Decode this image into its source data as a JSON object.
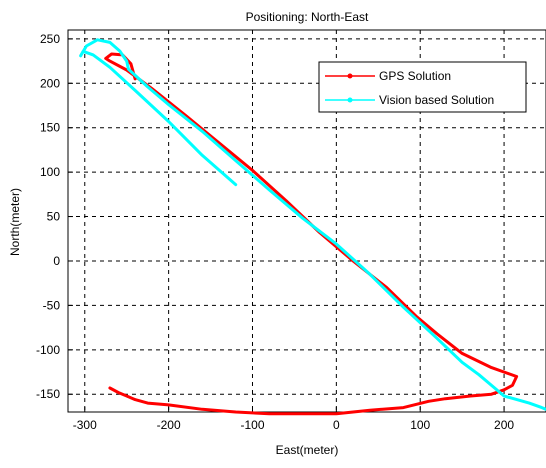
{
  "chart_data": {
    "type": "line",
    "title": "Positioning: North-East",
    "xlabel": "East(meter)",
    "ylabel": "North(meter)",
    "xlim": [
      -320,
      250
    ],
    "ylim": [
      -170,
      260
    ],
    "xticks": [
      -300,
      -200,
      -100,
      0,
      100,
      200
    ],
    "yticks": [
      -150,
      -100,
      -50,
      0,
      50,
      100,
      150,
      200,
      250
    ],
    "xtick_labels": [
      "-300",
      "-200",
      "-100",
      "0",
      "100",
      "200"
    ],
    "ytick_labels": [
      "-150",
      "-100",
      "-50",
      "0",
      "50",
      "100",
      "150",
      "200",
      "250"
    ],
    "grid": true,
    "grid_style": "dashed",
    "legend_position": "top-right",
    "series": [
      {
        "name": "GPS Solution",
        "color": "#ff0000",
        "line_width": 3,
        "x": [
          -270,
          -260,
          -250,
          -240,
          -225,
          -200,
          -160,
          -120,
          -80,
          -40,
          0,
          40,
          80,
          110,
          130,
          160,
          185,
          200,
          210,
          215,
          185,
          150,
          120,
          95,
          60,
          20,
          -20,
          -60,
          -100,
          -140,
          -180,
          -220,
          -250,
          -270,
          -275,
          -268,
          -255,
          -245,
          -240
        ],
        "y": [
          -143,
          -148,
          -152,
          -156,
          -160,
          -162,
          -167,
          -170,
          -172,
          -172,
          -172,
          -168,
          -165,
          -158,
          -155,
          -152,
          -150,
          -145,
          -140,
          -130,
          -120,
          -104,
          -82,
          -62,
          -30,
          0,
          32,
          68,
          102,
          133,
          164,
          194,
          215,
          225,
          228,
          233,
          232,
          222,
          205
        ]
      },
      {
        "name": "Vision based Solution",
        "color": "#00ffff",
        "line_width": 3,
        "x": [
          -120,
          -160,
          -200,
          -240,
          -270,
          -290,
          -302,
          -305,
          -298,
          -285,
          -270,
          -258,
          -250,
          -248,
          -225,
          -200,
          -160,
          -120,
          -80,
          -40,
          0,
          40,
          80,
          120,
          150,
          170,
          200,
          230,
          245,
          250
        ],
        "y": [
          86,
          119,
          157,
          192,
          218,
          232,
          236,
          231,
          242,
          249,
          246,
          236,
          225,
          216,
          196,
          176,
          146,
          113,
          80,
          48,
          19,
          -15,
          -52,
          -87,
          -114,
          -128,
          -152,
          -160,
          -165,
          -167
        ]
      }
    ]
  }
}
